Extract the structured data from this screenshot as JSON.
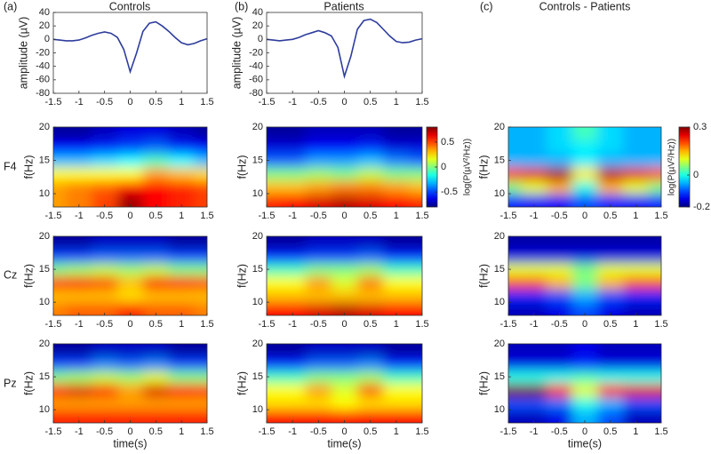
{
  "figure": {
    "columns": [
      {
        "label": "(a)",
        "title": "Controls"
      },
      {
        "label": "(b)",
        "title": "Patients"
      },
      {
        "label": "(c)",
        "title": "Controls - Patients"
      }
    ],
    "rows": [
      "F4",
      "Cz",
      "Pz"
    ]
  },
  "chart_data": [
    {
      "type": "line",
      "ylabel": "amplitude (µV)",
      "color": "#2e3d9c",
      "x": [
        -1.5,
        -1.375,
        -1.25,
        -1.125,
        -1,
        -0.875,
        -0.75,
        -0.625,
        -0.5,
        -0.375,
        -0.25,
        -0.125,
        0,
        0.125,
        0.25,
        0.375,
        0.5,
        0.625,
        0.75,
        0.875,
        1,
        1.125,
        1.25,
        1.375,
        1.5
      ],
      "y": [
        0,
        -1,
        -2,
        -2,
        -1,
        2,
        6,
        9,
        11,
        9,
        3,
        -15,
        -48,
        -20,
        12,
        24,
        26,
        20,
        12,
        3,
        -5,
        -8,
        -6,
        -2,
        1
      ],
      "xlim": [
        -1.5,
        1.5
      ],
      "xticks": [
        -1.5,
        -1,
        -0.5,
        0,
        0.5,
        1,
        1.5
      ],
      "ylim": [
        -80,
        40
      ],
      "yticks": [
        -80,
        -60,
        -40,
        -20,
        0,
        20,
        40
      ]
    },
    {
      "type": "line",
      "ylabel": "amplitude (µV)",
      "color": "#2e3d9c",
      "x": [
        -1.5,
        -1.375,
        -1.25,
        -1.125,
        -1,
        -0.875,
        -0.75,
        -0.625,
        -0.5,
        -0.375,
        -0.25,
        -0.125,
        0,
        0.125,
        0.25,
        0.375,
        0.5,
        0.625,
        0.75,
        0.875,
        1,
        1.125,
        1.25,
        1.375,
        1.5
      ],
      "y": [
        0,
        -1,
        -2,
        -1,
        0,
        3,
        7,
        10,
        13,
        10,
        5,
        -12,
        -55,
        -25,
        15,
        28,
        30,
        25,
        15,
        5,
        -3,
        -5,
        -4,
        -1,
        1
      ],
      "xlim": [
        -1.5,
        1.5
      ],
      "xticks": [
        -1.5,
        -1,
        -0.5,
        0,
        0.5,
        1,
        1.5
      ],
      "ylim": [
        -80,
        40
      ],
      "yticks": [
        -80,
        -60,
        -40,
        -20,
        0,
        20,
        40
      ]
    },
    {
      "type": "heatmap",
      "ylabel": "f(Hz)",
      "x": [
        -1.5,
        -1,
        -0.5,
        0,
        0.5,
        1,
        1.5
      ],
      "y": [
        9,
        11,
        13,
        15,
        17,
        19
      ],
      "zlim": [
        -0.8,
        0.8
      ],
      "z": [
        [
          0.35,
          0.4,
          0.5,
          0.75,
          0.6,
          0.55,
          0.5
        ],
        [
          0.35,
          0.4,
          0.45,
          0.6,
          0.6,
          0.55,
          0.5
        ],
        [
          0.2,
          0.2,
          0.2,
          0.2,
          0.35,
          0.3,
          0.25
        ],
        [
          -0.3,
          -0.3,
          -0.25,
          -0.2,
          -0.1,
          -0.2,
          -0.3
        ],
        [
          -0.6,
          -0.6,
          -0.55,
          -0.5,
          -0.45,
          -0.55,
          -0.6
        ],
        [
          -0.75,
          -0.75,
          -0.7,
          -0.65,
          -0.65,
          -0.7,
          -0.75
        ]
      ],
      "xlim": [
        -1.5,
        1.5
      ],
      "xticks": [
        -1.5,
        -1,
        -0.5,
        0,
        0.5,
        1,
        1.5
      ],
      "ylim": [
        8,
        20
      ],
      "yticks": [
        10,
        15,
        20
      ]
    },
    {
      "type": "heatmap",
      "ylabel": "f(Hz)",
      "x": [
        -1.5,
        -1,
        -0.5,
        0,
        0.5,
        1,
        1.5
      ],
      "y": [
        9,
        11,
        13,
        15,
        17,
        19
      ],
      "zlim": [
        -0.8,
        0.8
      ],
      "z": [
        [
          0.4,
          0.45,
          0.45,
          0.55,
          0.45,
          0.45,
          0.4
        ],
        [
          0.3,
          0.3,
          0.3,
          0.25,
          0.3,
          0.3,
          0.3
        ],
        [
          0.55,
          0.6,
          0.5,
          0.3,
          0.6,
          0.6,
          0.5
        ],
        [
          0.0,
          0.05,
          0.1,
          0.05,
          0.1,
          0.0,
          0.0
        ],
        [
          -0.5,
          -0.5,
          -0.45,
          -0.45,
          -0.45,
          -0.5,
          -0.5
        ],
        [
          -0.75,
          -0.75,
          -0.7,
          -0.7,
          -0.7,
          -0.75,
          -0.75
        ]
      ],
      "xlim": [
        -1.5,
        1.5
      ],
      "xticks": [
        -1.5,
        -1,
        -0.5,
        0,
        0.5,
        1,
        1.5
      ],
      "ylim": [
        8,
        20
      ],
      "yticks": [
        10,
        15,
        20
      ]
    },
    {
      "type": "heatmap",
      "ylabel": "f(Hz)",
      "xlabel": "time(s)",
      "x": [
        -1.5,
        -1,
        -0.5,
        0,
        0.5,
        1,
        1.5
      ],
      "y": [
        9,
        11,
        13,
        15,
        17,
        19
      ],
      "zlim": [
        -0.8,
        0.8
      ],
      "z": [
        [
          0.55,
          0.55,
          0.55,
          0.55,
          0.55,
          0.55,
          0.55
        ],
        [
          0.35,
          0.35,
          0.35,
          0.35,
          0.35,
          0.35,
          0.35
        ],
        [
          0.6,
          0.65,
          0.55,
          0.35,
          0.65,
          0.6,
          0.55
        ],
        [
          0.0,
          0.05,
          0.1,
          0.05,
          0.15,
          0.0,
          0.0
        ],
        [
          -0.5,
          -0.5,
          -0.4,
          -0.45,
          -0.4,
          -0.5,
          -0.5
        ],
        [
          -0.75,
          -0.75,
          -0.7,
          -0.7,
          -0.7,
          -0.75,
          -0.75
        ]
      ],
      "xlim": [
        -1.5,
        1.5
      ],
      "xticks": [
        -1.5,
        -1,
        -0.5,
        0,
        0.5,
        1,
        1.5
      ],
      "ylim": [
        8,
        20
      ],
      "yticks": [
        10,
        15,
        20
      ]
    },
    {
      "type": "heatmap",
      "ylabel": "f(Hz)",
      "x": [
        -1.5,
        -1,
        -0.5,
        0,
        0.5,
        1,
        1.5
      ],
      "y": [
        9,
        11,
        13,
        15,
        17,
        19
      ],
      "zlim": [
        -0.8,
        0.8
      ],
      "z": [
        [
          0.55,
          0.6,
          0.65,
          0.7,
          0.65,
          0.6,
          0.55
        ],
        [
          0.3,
          0.3,
          0.35,
          0.4,
          0.4,
          0.35,
          0.3
        ],
        [
          0.0,
          0.0,
          0.05,
          0.0,
          0.1,
          0.0,
          0.0
        ],
        [
          -0.45,
          -0.45,
          -0.35,
          -0.35,
          -0.3,
          -0.4,
          -0.45
        ],
        [
          -0.65,
          -0.65,
          -0.6,
          -0.6,
          -0.55,
          -0.65,
          -0.65
        ],
        [
          -0.75,
          -0.75,
          -0.7,
          -0.7,
          -0.7,
          -0.75,
          -0.75
        ]
      ],
      "xlim": [
        -1.5,
        1.5
      ],
      "xticks": [
        -1.5,
        -1,
        -0.5,
        0,
        0.5,
        1,
        1.5
      ],
      "ylim": [
        8,
        20
      ],
      "yticks": [
        10,
        15,
        20
      ],
      "colorbar": {
        "label": "log(P(µV²/Hz))",
        "lim": [
          -0.8,
          0.8
        ],
        "ticks": [
          -0.5,
          0,
          0.5
        ]
      }
    },
    {
      "type": "heatmap",
      "ylabel": "f(Hz)",
      "x": [
        -1.5,
        -1,
        -0.5,
        0,
        0.5,
        1,
        1.5
      ],
      "y": [
        9,
        11,
        13,
        15,
        17,
        19
      ],
      "zlim": [
        -0.8,
        0.8
      ],
      "z": [
        [
          0.6,
          0.6,
          0.65,
          0.7,
          0.65,
          0.6,
          0.6
        ],
        [
          0.3,
          0.3,
          0.3,
          0.3,
          0.3,
          0.3,
          0.3
        ],
        [
          0.2,
          0.2,
          0.35,
          0.15,
          0.4,
          0.2,
          0.2
        ],
        [
          -0.1,
          -0.1,
          0.0,
          0.0,
          0.05,
          -0.1,
          -0.1
        ],
        [
          -0.55,
          -0.55,
          -0.5,
          -0.5,
          -0.45,
          -0.55,
          -0.55
        ],
        [
          -0.75,
          -0.75,
          -0.7,
          -0.7,
          -0.7,
          -0.75,
          -0.75
        ]
      ],
      "xlim": [
        -1.5,
        1.5
      ],
      "xticks": [
        -1.5,
        -1,
        -0.5,
        0,
        0.5,
        1,
        1.5
      ],
      "ylim": [
        8,
        20
      ],
      "yticks": [
        10,
        15,
        20
      ]
    },
    {
      "type": "heatmap",
      "ylabel": "f(Hz)",
      "xlabel": "time(s)",
      "x": [
        -1.5,
        -1,
        -0.5,
        0,
        0.5,
        1,
        1.5
      ],
      "y": [
        9,
        11,
        13,
        15,
        17,
        19
      ],
      "zlim": [
        -0.8,
        0.8
      ],
      "z": [
        [
          0.6,
          0.6,
          0.6,
          0.6,
          0.6,
          0.6,
          0.6
        ],
        [
          0.25,
          0.25,
          0.25,
          0.2,
          0.25,
          0.25,
          0.25
        ],
        [
          0.2,
          0.2,
          0.35,
          0.15,
          0.45,
          0.2,
          0.2
        ],
        [
          -0.1,
          -0.1,
          0.0,
          0.0,
          0.05,
          -0.1,
          -0.1
        ],
        [
          -0.55,
          -0.55,
          -0.45,
          -0.45,
          -0.4,
          -0.55,
          -0.55
        ],
        [
          -0.75,
          -0.75,
          -0.7,
          -0.7,
          -0.7,
          -0.75,
          -0.75
        ]
      ],
      "xlim": [
        -1.5,
        1.5
      ],
      "xticks": [
        -1.5,
        -1,
        -0.5,
        0,
        0.5,
        1,
        1.5
      ],
      "ylim": [
        8,
        20
      ],
      "yticks": [
        10,
        15,
        20
      ]
    },
    {
      "type": "heatmap",
      "ylabel": "f(Hz)",
      "x": [
        -1.5,
        -1,
        -0.5,
        0,
        0.5,
        1,
        1.5
      ],
      "y": [
        9,
        11,
        13,
        15,
        17,
        19
      ],
      "zlim": [
        -0.2,
        0.3
      ],
      "z": [
        [
          -0.12,
          -0.14,
          -0.14,
          -0.1,
          -0.12,
          -0.14,
          -0.12
        ],
        [
          0.05,
          0.1,
          0.15,
          0.0,
          0.15,
          0.1,
          0.05
        ],
        [
          0.22,
          0.25,
          0.28,
          0.12,
          0.27,
          0.25,
          0.2
        ],
        [
          -0.05,
          -0.05,
          -0.05,
          -0.02,
          -0.05,
          -0.05,
          -0.05
        ],
        [
          -0.05,
          -0.05,
          -0.03,
          -0.02,
          -0.03,
          -0.05,
          -0.05
        ],
        [
          -0.05,
          -0.05,
          -0.03,
          0.02,
          -0.03,
          -0.05,
          -0.05
        ]
      ],
      "xlim": [
        -1.5,
        1.5
      ],
      "xticks": [
        -1.5,
        -1,
        -0.5,
        0,
        0.5,
        1,
        1.5
      ],
      "ylim": [
        8,
        20
      ],
      "yticks": [
        10,
        15,
        20
      ],
      "colorbar": {
        "label": "log(P(µV²/Hz))",
        "lim": [
          -0.2,
          0.3
        ],
        "ticks": [
          -0.2,
          0,
          0.3
        ]
      }
    },
    {
      "type": "heatmap",
      "ylabel": "f(Hz)",
      "x": [
        -1.5,
        -1,
        -0.5,
        0,
        0.5,
        1,
        1.5
      ],
      "y": [
        9,
        11,
        13,
        15,
        17,
        19
      ],
      "zlim": [
        -0.2,
        0.3
      ],
      "z": [
        [
          -0.17,
          -0.17,
          -0.15,
          -0.1,
          -0.15,
          -0.17,
          -0.17
        ],
        [
          -0.12,
          -0.12,
          -0.1,
          -0.05,
          -0.1,
          -0.12,
          -0.12
        ],
        [
          0.2,
          0.2,
          0.15,
          0.05,
          0.15,
          0.2,
          0.2
        ],
        [
          0.1,
          0.1,
          0.1,
          0.05,
          0.1,
          0.1,
          0.1
        ],
        [
          -0.15,
          -0.15,
          -0.15,
          -0.15,
          -0.15,
          -0.15,
          -0.15
        ],
        [
          -0.18,
          -0.18,
          -0.18,
          -0.18,
          -0.18,
          -0.18,
          -0.18
        ]
      ],
      "xlim": [
        -1.5,
        1.5
      ],
      "xticks": [
        -1.5,
        -1,
        -0.5,
        0,
        0.5,
        1,
        1.5
      ],
      "ylim": [
        8,
        20
      ],
      "yticks": [
        10,
        15,
        20
      ]
    },
    {
      "type": "heatmap",
      "ylabel": "f(Hz)",
      "xlabel": "time(s)",
      "x": [
        -1.5,
        -1,
        -0.5,
        0,
        0.5,
        1,
        1.5
      ],
      "y": [
        9,
        11,
        13,
        15,
        17,
        19
      ],
      "zlim": [
        -0.2,
        0.3
      ],
      "z": [
        [
          -0.17,
          -0.17,
          -0.15,
          -0.05,
          -0.1,
          -0.17,
          -0.17
        ],
        [
          -0.1,
          -0.1,
          -0.08,
          0.0,
          -0.05,
          -0.1,
          -0.1
        ],
        [
          0.3,
          0.3,
          0.22,
          0.1,
          0.22,
          0.25,
          0.25
        ],
        [
          0.0,
          0.0,
          0.0,
          0.02,
          0.0,
          0.0,
          0.0
        ],
        [
          -0.15,
          -0.15,
          -0.15,
          -0.12,
          -0.15,
          -0.15,
          -0.15
        ],
        [
          -0.17,
          -0.17,
          -0.17,
          -0.15,
          -0.17,
          -0.17,
          -0.17
        ]
      ],
      "xlim": [
        -1.5,
        1.5
      ],
      "xticks": [
        -1.5,
        -1,
        -0.5,
        0,
        0.5,
        1,
        1.5
      ],
      "ylim": [
        8,
        20
      ],
      "yticks": [
        10,
        15,
        20
      ]
    }
  ]
}
